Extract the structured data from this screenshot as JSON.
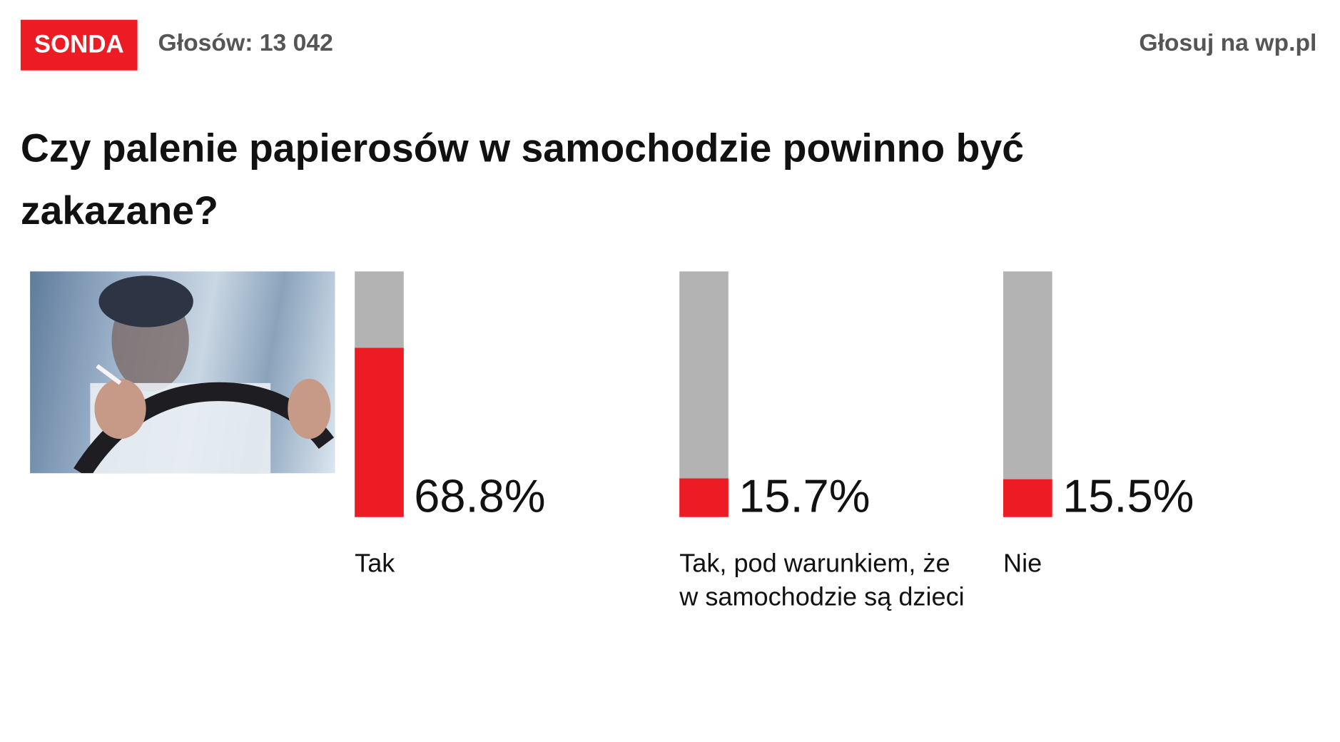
{
  "header": {
    "badge": "SONDA",
    "votes": "Głosów: 13 042",
    "vote_link": "Głosuj na wp.pl"
  },
  "question": "Czy palenie papierosów w samochodzie powinno być zakazane?",
  "colors": {
    "accent": "#ed1c24",
    "bar_bg": "#b3b3b3",
    "header_text": "#555555"
  },
  "chart_data": {
    "type": "bar",
    "title": "Czy palenie papierosów w samochodzie powinno być zakazane?",
    "categories": [
      "Tak",
      "Tak, pod warunkiem, że w samochodzie są dzieci",
      "Nie"
    ],
    "values": [
      68.8,
      15.7,
      15.5
    ],
    "value_labels": [
      "68.8%",
      "15.7%",
      "15.5%"
    ],
    "ylim": [
      0,
      100
    ],
    "orientation": "vertical",
    "grid": false
  }
}
